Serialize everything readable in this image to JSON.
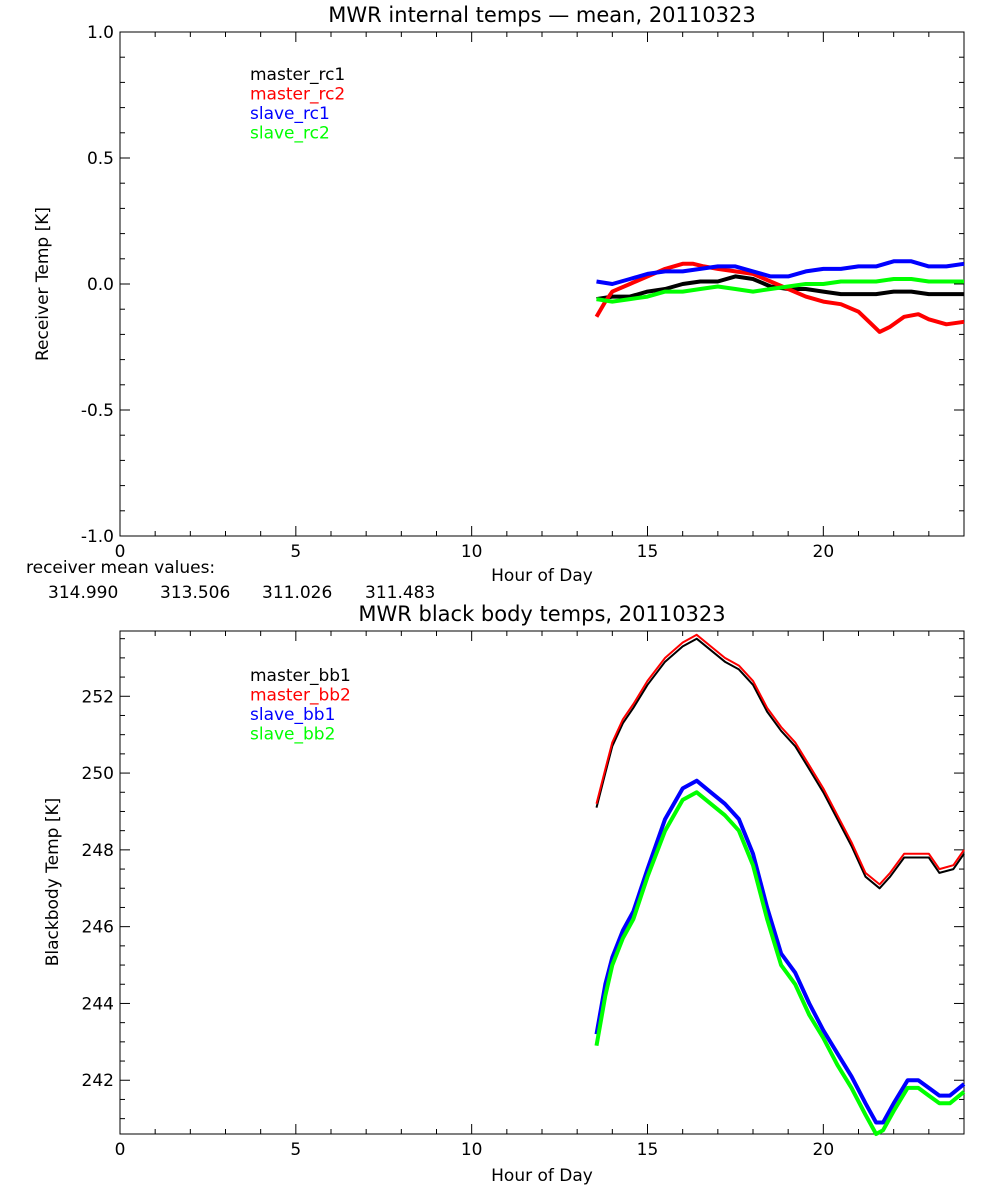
{
  "chart_data": [
    {
      "type": "line",
      "title": "MWR internal temps — mean, 20110323",
      "xlabel": "Hour of Day",
      "ylabel": "Receiver Temp [K]",
      "xlim": [
        0,
        24
      ],
      "ylim": [
        -1.0,
        1.0
      ],
      "xticks": [
        "0",
        "5",
        "10",
        "15",
        "20"
      ],
      "yticks": [
        "1.0",
        "0.5",
        "0.0",
        "-0.5",
        "-1.0"
      ],
      "legend_position": "top-left",
      "series": [
        {
          "name": "master_rc1",
          "color": "#000000",
          "x": [
            13.55,
            14.0,
            14.5,
            15.0,
            15.5,
            16.0,
            16.5,
            17.0,
            17.5,
            18.0,
            18.5,
            19.0,
            19.5,
            20.0,
            20.5,
            21.0,
            21.5,
            22.0,
            22.5,
            23.0,
            23.5,
            24.0
          ],
          "y": [
            -0.06,
            -0.05,
            -0.05,
            -0.03,
            -0.02,
            0.0,
            0.01,
            0.01,
            0.03,
            0.02,
            -0.01,
            -0.02,
            -0.02,
            -0.03,
            -0.04,
            -0.04,
            -0.04,
            -0.03,
            -0.03,
            -0.04,
            -0.04,
            -0.04
          ]
        },
        {
          "name": "master_rc2",
          "color": "#ff0000",
          "x": [
            13.55,
            13.8,
            14.0,
            14.5,
            15.0,
            15.5,
            16.0,
            16.3,
            16.6,
            17.0,
            17.5,
            18.0,
            18.5,
            19.0,
            19.5,
            20.0,
            20.5,
            21.0,
            21.3,
            21.6,
            21.9,
            22.3,
            22.7,
            23.0,
            23.5,
            24.0
          ],
          "y": [
            -0.13,
            -0.07,
            -0.03,
            0.0,
            0.03,
            0.06,
            0.08,
            0.08,
            0.07,
            0.06,
            0.05,
            0.04,
            0.01,
            -0.02,
            -0.05,
            -0.07,
            -0.08,
            -0.11,
            -0.15,
            -0.19,
            -0.17,
            -0.13,
            -0.12,
            -0.14,
            -0.16,
            -0.15
          ]
        },
        {
          "name": "slave_rc1",
          "color": "#0000ff",
          "x": [
            13.55,
            14.0,
            14.5,
            15.0,
            15.5,
            16.0,
            16.5,
            17.0,
            17.5,
            18.0,
            18.5,
            19.0,
            19.5,
            20.0,
            20.5,
            21.0,
            21.5,
            22.0,
            22.5,
            23.0,
            23.5,
            24.0
          ],
          "y": [
            0.01,
            0.0,
            0.02,
            0.04,
            0.05,
            0.05,
            0.06,
            0.07,
            0.07,
            0.05,
            0.03,
            0.03,
            0.05,
            0.06,
            0.06,
            0.07,
            0.07,
            0.09,
            0.09,
            0.07,
            0.07,
            0.08
          ]
        },
        {
          "name": "slave_rc2",
          "color": "#00ff00",
          "x": [
            13.55,
            14.0,
            14.5,
            15.0,
            15.5,
            16.0,
            16.5,
            17.0,
            17.5,
            18.0,
            18.5,
            19.0,
            19.5,
            20.0,
            20.5,
            21.0,
            21.5,
            22.0,
            22.5,
            23.0,
            23.5,
            24.0
          ],
          "y": [
            -0.06,
            -0.07,
            -0.06,
            -0.05,
            -0.03,
            -0.03,
            -0.02,
            -0.01,
            -0.02,
            -0.03,
            -0.02,
            -0.01,
            0.0,
            0.0,
            0.01,
            0.01,
            0.01,
            0.02,
            0.02,
            0.01,
            0.01,
            0.01
          ]
        }
      ]
    },
    {
      "type": "line",
      "title": "MWR black body temps, 20110323",
      "xlabel": "Hour of Day",
      "ylabel": "Blackbody Temp [K]",
      "xlim": [
        0,
        24
      ],
      "ylim": [
        240.6,
        253.7
      ],
      "xticks": [
        "0",
        "5",
        "10",
        "15",
        "20"
      ],
      "yticks": [
        "252",
        "250",
        "248",
        "246",
        "244",
        "242"
      ],
      "legend_position": "top-left",
      "series": [
        {
          "name": "master_bb1",
          "color": "#000000",
          "x": [
            13.55,
            13.8,
            14.0,
            14.3,
            14.6,
            15.0,
            15.5,
            16.0,
            16.4,
            16.8,
            17.2,
            17.6,
            18.0,
            18.4,
            18.8,
            19.2,
            19.6,
            20.0,
            20.4,
            20.8,
            21.2,
            21.6,
            21.9,
            22.3,
            22.7,
            23.0,
            23.3,
            23.7,
            24.0
          ],
          "y": [
            249.1,
            250.0,
            250.7,
            251.3,
            251.7,
            252.3,
            252.9,
            253.3,
            253.5,
            253.2,
            252.9,
            252.7,
            252.3,
            251.6,
            251.1,
            250.7,
            250.1,
            249.5,
            248.8,
            248.1,
            247.3,
            247.0,
            247.3,
            247.8,
            247.8,
            247.8,
            247.4,
            247.5,
            247.9
          ]
        },
        {
          "name": "master_bb2",
          "color": "#ff0000",
          "x": [
            13.55,
            13.8,
            14.0,
            14.3,
            14.6,
            15.0,
            15.5,
            16.0,
            16.4,
            16.8,
            17.2,
            17.6,
            18.0,
            18.4,
            18.8,
            19.2,
            19.6,
            20.0,
            20.4,
            20.8,
            21.2,
            21.6,
            21.9,
            22.3,
            22.7,
            23.0,
            23.3,
            23.7,
            24.0
          ],
          "y": [
            249.2,
            250.1,
            250.8,
            251.4,
            251.8,
            252.4,
            253.0,
            253.4,
            253.6,
            253.3,
            253.0,
            252.8,
            252.4,
            251.7,
            251.2,
            250.8,
            250.2,
            249.6,
            248.9,
            248.2,
            247.4,
            247.1,
            247.4,
            247.9,
            247.9,
            247.9,
            247.5,
            247.6,
            248.0
          ]
        },
        {
          "name": "slave_bb1",
          "color": "#0000ff",
          "x": [
            13.55,
            13.8,
            14.0,
            14.3,
            14.6,
            15.0,
            15.5,
            16.0,
            16.4,
            16.8,
            17.2,
            17.6,
            18.0,
            18.4,
            18.8,
            19.2,
            19.6,
            20.0,
            20.4,
            20.8,
            21.2,
            21.5,
            21.7,
            22.0,
            22.4,
            22.7,
            23.0,
            23.3,
            23.6,
            24.0
          ],
          "y": [
            243.2,
            244.5,
            245.2,
            245.9,
            246.4,
            247.5,
            248.8,
            249.6,
            249.8,
            249.5,
            249.2,
            248.8,
            247.9,
            246.5,
            245.3,
            244.8,
            244.0,
            243.3,
            242.7,
            242.1,
            241.4,
            240.9,
            240.9,
            241.4,
            242.0,
            242.0,
            241.8,
            241.6,
            241.6,
            241.9
          ]
        },
        {
          "name": "slave_bb2",
          "color": "#00ff00",
          "x": [
            13.55,
            13.8,
            14.0,
            14.3,
            14.6,
            15.0,
            15.5,
            16.0,
            16.4,
            16.8,
            17.2,
            17.6,
            18.0,
            18.4,
            18.8,
            19.2,
            19.6,
            20.0,
            20.4,
            20.8,
            21.2,
            21.5,
            21.7,
            22.0,
            22.4,
            22.7,
            23.0,
            23.3,
            23.6,
            24.0
          ],
          "y": [
            242.9,
            244.2,
            245.0,
            245.7,
            246.2,
            247.3,
            248.5,
            249.3,
            249.5,
            249.2,
            248.9,
            248.5,
            247.6,
            246.2,
            245.0,
            244.5,
            243.7,
            243.1,
            242.4,
            241.8,
            241.1,
            240.6,
            240.7,
            241.2,
            241.8,
            241.8,
            241.6,
            241.4,
            241.4,
            241.7
          ]
        }
      ]
    }
  ],
  "mean_values": {
    "label": "receiver mean values:",
    "items": [
      {
        "value": "314.990",
        "color": "#000000"
      },
      {
        "value": "313.506",
        "color": "#ff0000"
      },
      {
        "value": "311.026",
        "color": "#0000ff"
      },
      {
        "value": "311.483",
        "color": "#00ff00"
      }
    ]
  }
}
